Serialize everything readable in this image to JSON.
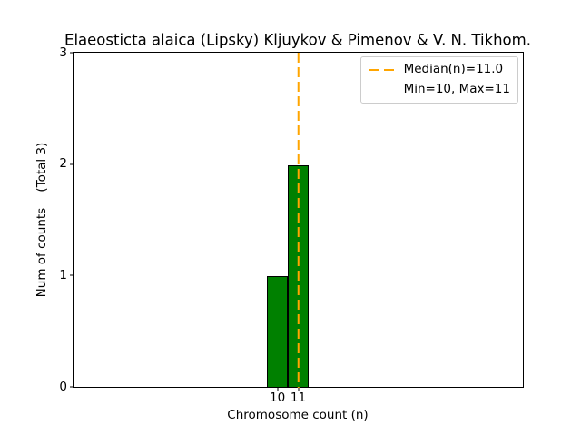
{
  "title": "Elaeosticta alaica (Lipsky) Kljuykov & Pimenov & V. N. Tikhom.",
  "axis": {
    "xlabel": "Chromosome count (n)",
    "ylabel": "Num of counts    (Total 3)"
  },
  "legend": {
    "median_label": "Median(n)=11.0",
    "minmax_label": "Min=10, Max=11"
  },
  "chart_data": {
    "type": "bar",
    "title": "Elaeosticta alaica (Lipsky) Kljuykov & Pimenov & V. N. Tikhom.",
    "xlabel": "Chromosome count (n)",
    "ylabel": "Num of counts    (Total 3)",
    "categories": [
      10,
      11
    ],
    "values": [
      1,
      2
    ],
    "bins": [
      [
        9.5,
        10.5
      ],
      [
        10.5,
        11.5
      ]
    ],
    "total": 3,
    "median": 11.0,
    "min": 10,
    "max": 11,
    "xticks": [
      10,
      11
    ],
    "yticks": [
      0,
      1,
      2,
      3
    ],
    "xlim": [
      0.2,
      21.8
    ],
    "ylim": [
      0,
      3
    ],
    "grid": false,
    "legend_position": "upper right",
    "legend_entries": [
      "Median(n)=11.0",
      "Min=10, Max=11"
    ],
    "colors": {
      "bar_fill": "#008000",
      "bar_edge": "#000000",
      "median_line": "#FFA500",
      "legend_border": "#cccccc",
      "axes": "#000000",
      "background": "#ffffff"
    }
  }
}
